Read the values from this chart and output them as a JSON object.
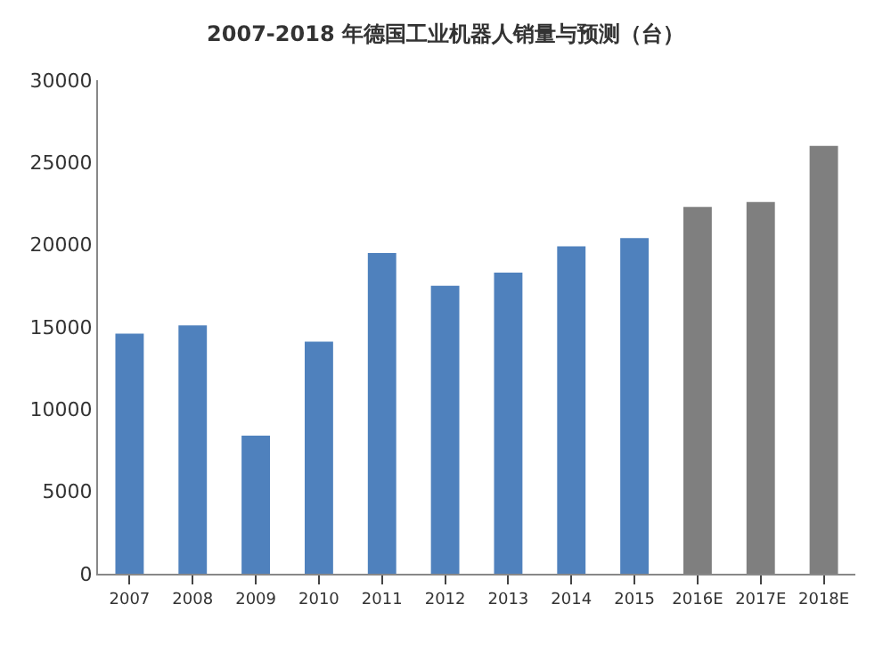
{
  "chart_data": {
    "type": "bar",
    "title": "2007-2018 年德国工业机器人销量与预测（台）",
    "categories": [
      "2007",
      "2008",
      "2009",
      "2010",
      "2011",
      "2012",
      "2013",
      "2014",
      "2015",
      "2016E",
      "2017E",
      "2018E"
    ],
    "values": [
      14600,
      15100,
      8400,
      14100,
      19500,
      17500,
      18300,
      19900,
      20400,
      22300,
      22600,
      26000
    ],
    "colors": [
      "#4f81bd",
      "#4f81bd",
      "#4f81bd",
      "#4f81bd",
      "#4f81bd",
      "#4f81bd",
      "#4f81bd",
      "#4f81bd",
      "#4f81bd",
      "#7f7f7f",
      "#7f7f7f",
      "#7f7f7f"
    ],
    "ylim": [
      0,
      30000
    ],
    "yticks": [
      0,
      5000,
      10000,
      15000,
      20000,
      25000,
      30000
    ]
  }
}
